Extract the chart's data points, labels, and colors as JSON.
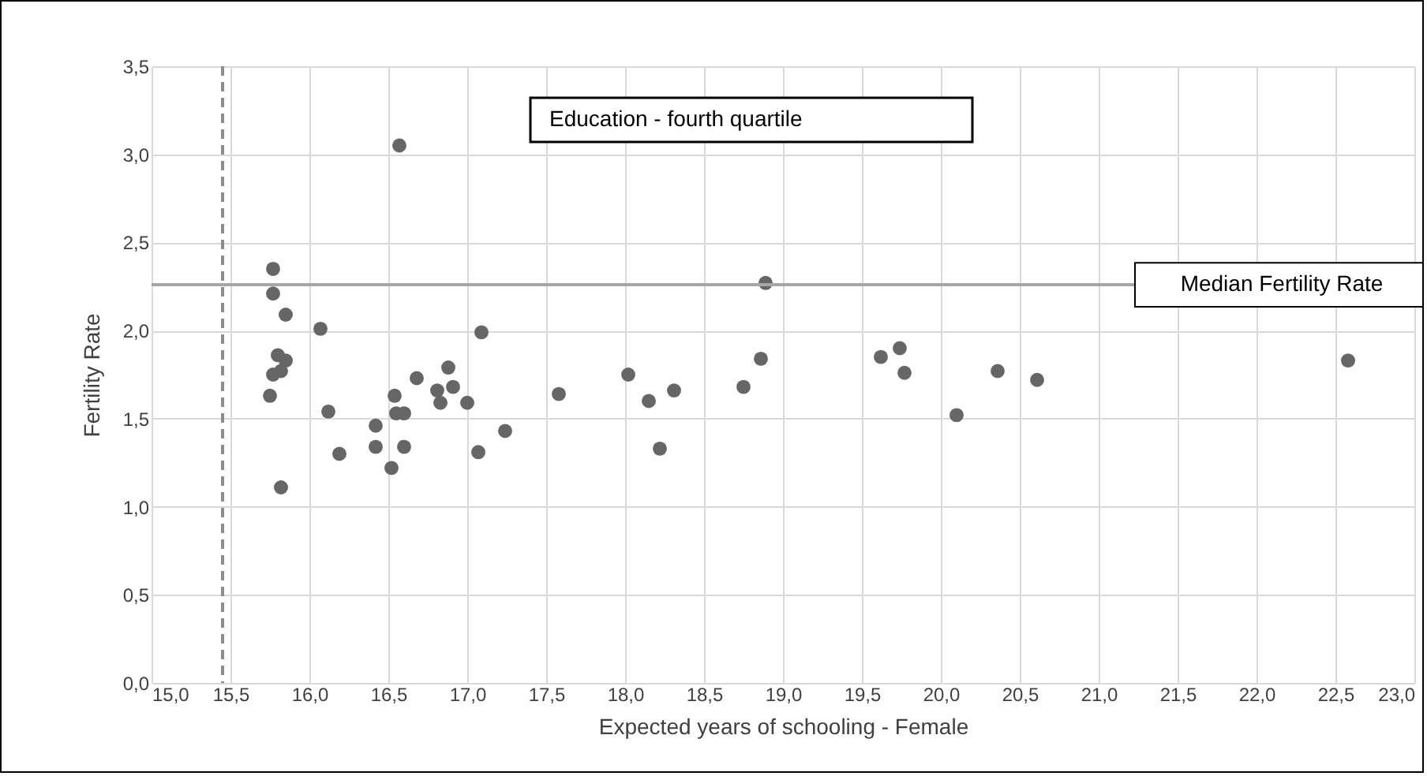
{
  "chart_data": {
    "type": "scatter",
    "xlabel": "Expected years of schooling - Female",
    "ylabel": "Fertility Rate",
    "x": [
      15.77,
      15.77,
      15.85,
      16.07,
      15.8,
      15.85,
      15.82,
      15.77,
      15.75,
      16.12,
      15.82,
      16.19,
      16.42,
      16.42,
      16.52,
      16.6,
      16.54,
      16.55,
      16.6,
      16.68,
      16.81,
      16.88,
      16.83,
      16.91,
      17.0,
      17.09,
      17.07,
      17.24,
      16.57,
      18.89,
      17.58,
      18.02,
      18.15,
      18.31,
      18.22,
      18.75,
      18.86,
      19.62,
      19.74,
      19.77,
      20.1,
      20.36,
      20.61,
      22.58
    ],
    "values": [
      2.35,
      2.21,
      2.09,
      2.01,
      1.86,
      1.83,
      1.77,
      1.75,
      1.63,
      1.54,
      1.11,
      1.3,
      1.46,
      1.34,
      1.22,
      1.34,
      1.63,
      1.53,
      1.53,
      1.73,
      1.66,
      1.79,
      1.59,
      1.68,
      1.59,
      1.99,
      1.31,
      1.43,
      3.05,
      2.27,
      1.64,
      1.75,
      1.6,
      1.66,
      1.33,
      1.68,
      1.84,
      1.85,
      1.9,
      1.76,
      1.52,
      1.77,
      1.72,
      1.83
    ],
    "color": "#666666",
    "marker": "circle",
    "grid": true,
    "xlim": [
      15,
      23
    ],
    "xticks": [
      {
        "value": 15,
        "label": "15,0"
      },
      {
        "value": 15.5,
        "label": "15,5"
      },
      {
        "value": 16,
        "label": "16,0"
      },
      {
        "value": 16.5,
        "label": "16,5"
      },
      {
        "value": 17,
        "label": "17,0"
      },
      {
        "value": 17.5,
        "label": "17,5"
      },
      {
        "value": 18,
        "label": "18,0"
      },
      {
        "value": 18.5,
        "label": "18,5"
      },
      {
        "value": 19,
        "label": "19,0"
      },
      {
        "value": 19.5,
        "label": "19,5"
      },
      {
        "value": 20,
        "label": "20,0"
      },
      {
        "value": 20.5,
        "label": "20,5"
      },
      {
        "value": 21,
        "label": "21,0"
      },
      {
        "value": 21.5,
        "label": "21,5"
      },
      {
        "value": 22,
        "label": "22,0"
      },
      {
        "value": 22.5,
        "label": "22,5"
      },
      {
        "value": 23,
        "label": "23,0"
      }
    ],
    "ylim": [
      0,
      3.5
    ],
    "yticks": [
      {
        "value": 0,
        "label": "0,0"
      },
      {
        "value": 0.5,
        "label": "0,5"
      },
      {
        "value": 1,
        "label": "1,0"
      },
      {
        "value": 1.5,
        "label": "1,5"
      },
      {
        "value": 2,
        "label": "2,0"
      },
      {
        "value": 2.5,
        "label": "2,5"
      },
      {
        "value": 3,
        "label": "3,0"
      },
      {
        "value": 3.5,
        "label": "3,5"
      }
    ],
    "ref_lines": [
      {
        "axis": "x",
        "value": 15.45,
        "color": "#8c8c8c",
        "line_style": "dashed"
      },
      {
        "axis": "y",
        "value": 2.26,
        "label": "Median Fertility Rate",
        "color": "#a6a6a6"
      }
    ],
    "annotations": [
      "Education - fourth quartile"
    ]
  }
}
